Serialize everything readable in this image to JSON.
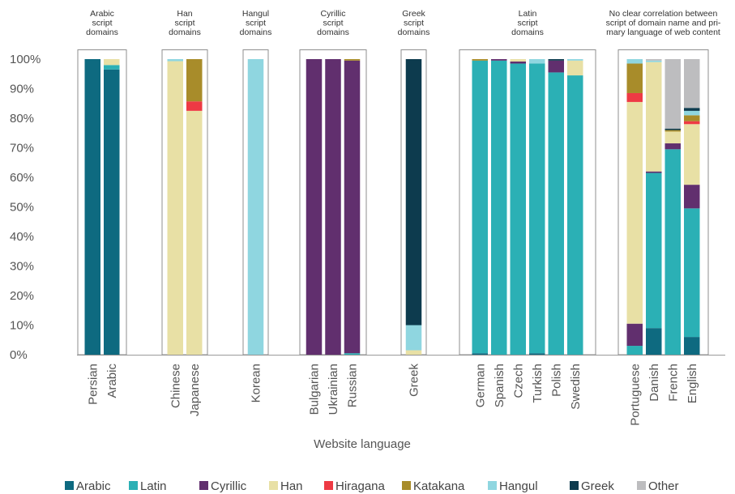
{
  "chart_data": {
    "type": "bar",
    "stacked": true,
    "xlabel": "Website language",
    "ylim": [
      0,
      100
    ],
    "y_ticks": [
      "0%",
      "10%",
      "20%",
      "30%",
      "40%",
      "50%",
      "60%",
      "70%",
      "80%",
      "90%",
      "100%"
    ],
    "legend_position": "bottom",
    "series": [
      {
        "name": "Arabic",
        "color": "#0e6a80"
      },
      {
        "name": "Latin",
        "color": "#2bb0b5"
      },
      {
        "name": "Cyrillic",
        "color": "#612f6e"
      },
      {
        "name": "Han",
        "color": "#e8e0a5"
      },
      {
        "name": "Hiragana",
        "color": "#ee3a44"
      },
      {
        "name": "Katakana",
        "color": "#a88c2a"
      },
      {
        "name": "Hangul",
        "color": "#8fd6e0"
      },
      {
        "name": "Greek",
        "color": "#0d3b4e"
      },
      {
        "name": "Other",
        "color": "#bdbdbf"
      }
    ],
    "groups": [
      {
        "label": "Arabic script domains",
        "label_lines": [
          "Arabic",
          "script",
          "domains"
        ],
        "bars": [
          {
            "category": "Persian",
            "values": {
              "Arabic": 100
            }
          },
          {
            "category": "Arabic",
            "values": {
              "Arabic": 96.5,
              "Latin": 1.5,
              "Han": 2
            }
          }
        ]
      },
      {
        "label": "Han script domains",
        "label_lines": [
          "Han",
          "script",
          "domains"
        ],
        "bars": [
          {
            "category": "Chinese",
            "values": {
              "Han": 99.3,
              "Hangul": 0.7
            }
          },
          {
            "category": "Japanese",
            "values": {
              "Han": 82.5,
              "Hiragana": 3.2,
              "Katakana": 14.3
            }
          }
        ]
      },
      {
        "label": "Hangul script domains",
        "label_lines": [
          "Hangul",
          "script",
          "domains"
        ],
        "bars": [
          {
            "category": "Korean",
            "values": {
              "Hangul": 100
            }
          }
        ]
      },
      {
        "label": "Cyrillic script domains",
        "label_lines": [
          "Cyrillic",
          "script",
          "domains"
        ],
        "bars": [
          {
            "category": "Bulgarian",
            "values": {
              "Cyrillic": 100
            }
          },
          {
            "category": "Ukrainian",
            "values": {
              "Cyrillic": 100
            }
          },
          {
            "category": "Russian",
            "values": {
              "Latin": 0.5,
              "Cyrillic": 99,
              "Katakana": 0.5
            }
          }
        ]
      },
      {
        "label": "Greek script domains",
        "label_lines": [
          "Greek",
          "script",
          "domains"
        ],
        "bars": [
          {
            "category": "Greek",
            "values": {
              "Han": 1.5,
              "Hangul": 8.5,
              "Greek": 90
            }
          }
        ]
      },
      {
        "label": "Latin script domains",
        "label_lines": [
          "Latin",
          "script",
          "domains"
        ],
        "bars": [
          {
            "category": "German",
            "values": {
              "Arabic": 0.5,
              "Latin": 99,
              "Katakana": 0.5
            }
          },
          {
            "category": "Spanish",
            "values": {
              "Latin": 99.5,
              "Cyrillic": 0.5
            }
          },
          {
            "category": "Czech",
            "values": {
              "Latin": 98.5,
              "Cyrillic": 0.7,
              "Han": 0.8
            }
          },
          {
            "category": "Turkish",
            "values": {
              "Arabic": 0.5,
              "Latin": 98,
              "Hangul": 1.5
            }
          },
          {
            "category": "Polish",
            "values": {
              "Latin": 95.5,
              "Cyrillic": 4,
              "Greek": 0.5
            }
          },
          {
            "category": "Swedish",
            "values": {
              "Latin": 94.5,
              "Han": 5,
              "Hangul": 0.5
            }
          }
        ]
      },
      {
        "label": "No clear correlation between script of domain name and primary language of web content",
        "label_lines": [
          "No clear correlation between",
          "script of domain name and pri-",
          "mary language of web content"
        ],
        "bars": [
          {
            "category": "Portuguese",
            "values": {
              "Latin": 3,
              "Cyrillic": 7.5,
              "Han": 75,
              "Hiragana": 3,
              "Katakana": 10,
              "Hangul": 1.5
            }
          },
          {
            "category": "Danish",
            "values": {
              "Arabic": 9,
              "Latin": 52.5,
              "Cyrillic": 0.5,
              "Han": 37,
              "Hangul": 0.5,
              "Other": 0.5
            }
          },
          {
            "category": "French",
            "values": {
              "Latin": 69.5,
              "Cyrillic": 2,
              "Han": 4,
              "Katakana": 0.5,
              "Greek": 0.5,
              "Other": 23.5
            }
          },
          {
            "category": "English",
            "values": {
              "Arabic": 6,
              "Latin": 43.5,
              "Cyrillic": 8,
              "Han": 20.5,
              "Hiragana": 1,
              "Katakana": 2,
              "Hangul": 1.5,
              "Greek": 1,
              "Other": 16.5
            }
          }
        ]
      }
    ]
  }
}
